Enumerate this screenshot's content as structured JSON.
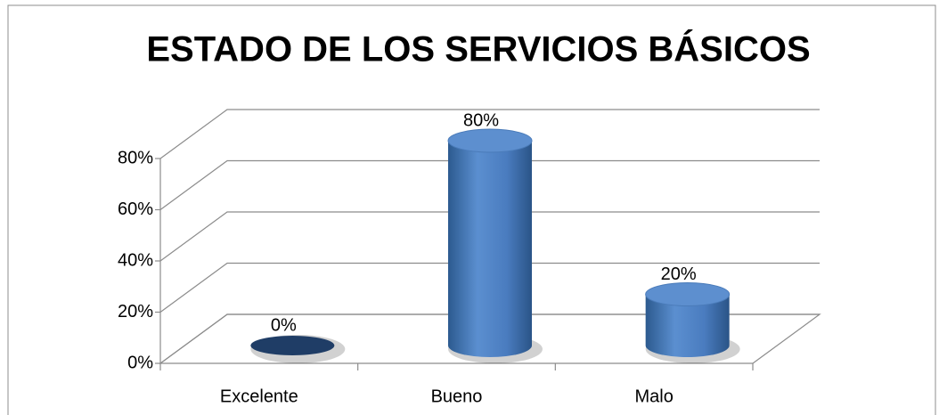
{
  "chart_data": {
    "type": "bar",
    "title": "ESTADO DE LOS SERVICIOS BÁSICOS",
    "categories": [
      "Excelente",
      "Bueno",
      "Malo"
    ],
    "values": [
      0,
      80,
      20
    ],
    "value_labels": [
      "0%",
      "80%",
      "20%"
    ],
    "color": "#4f81bd",
    "ylim": [
      0,
      80
    ],
    "yticks": [
      {
        "value": 0,
        "label": "0%"
      },
      {
        "value": 20,
        "label": "20%"
      },
      {
        "value": 40,
        "label": "40%"
      },
      {
        "value": 60,
        "label": "60%"
      },
      {
        "value": 80,
        "label": "80%"
      }
    ],
    "grid": true
  }
}
